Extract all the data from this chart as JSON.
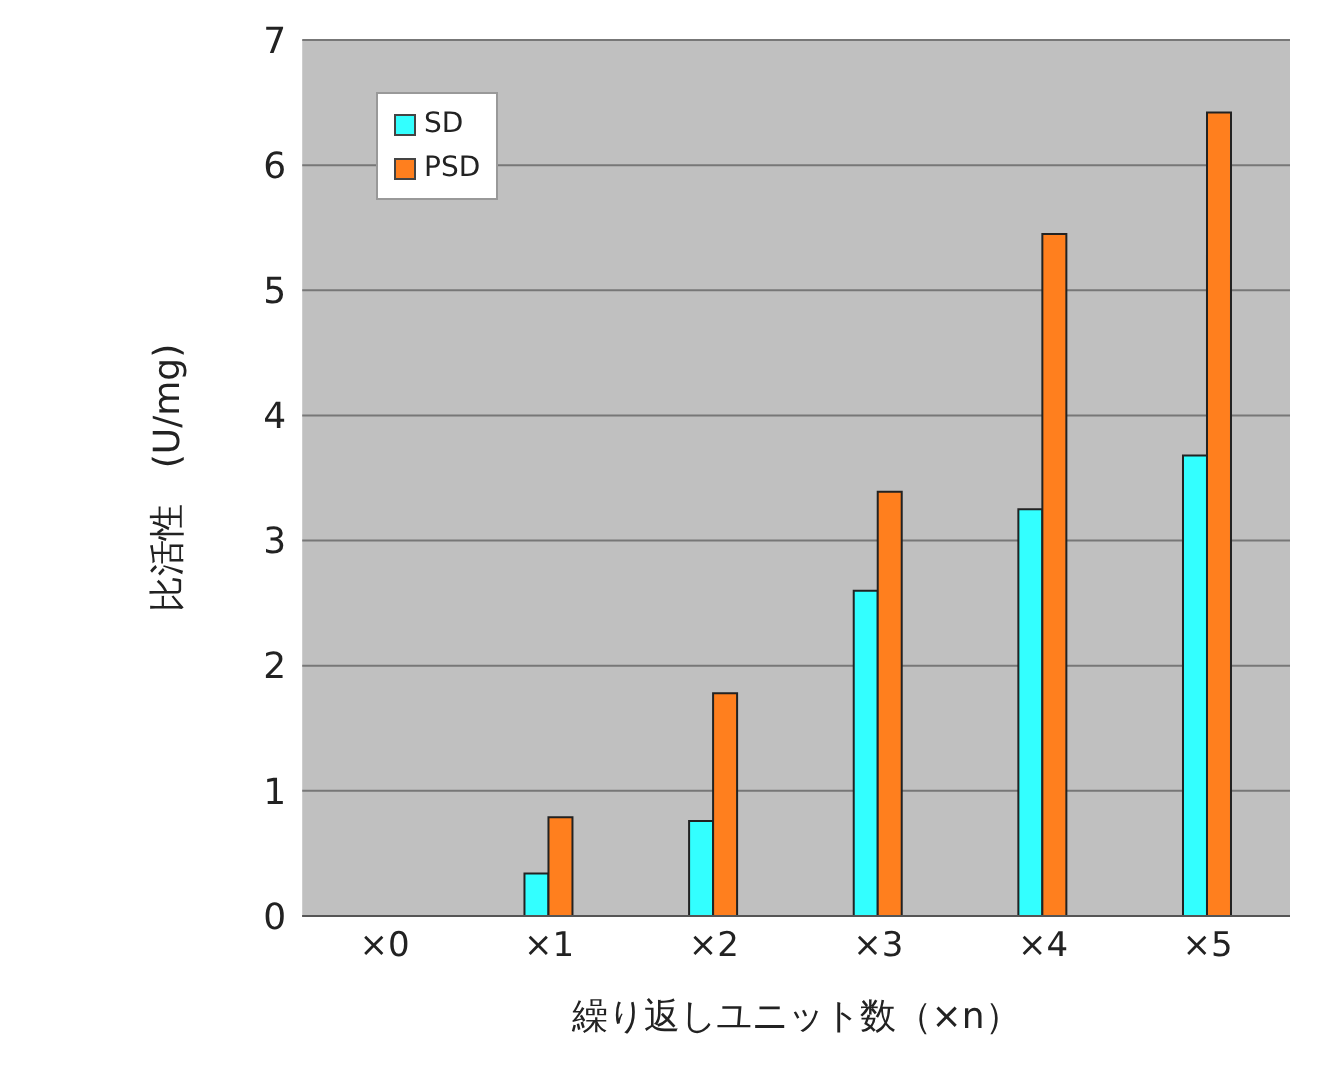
{
  "chart_data": {
    "type": "bar",
    "xlabel": "繰り返しユニット数（×n）",
    "ylabel": "比活性　(U/mg)",
    "categories": [
      "×0",
      "×1",
      "×2",
      "×3",
      "×4",
      "×5"
    ],
    "series": [
      {
        "name": "SD",
        "color": "#33ffff",
        "values": [
          0,
          0.34,
          0.76,
          2.6,
          3.25,
          3.68
        ]
      },
      {
        "name": "PSD",
        "color": "#ff7f1e",
        "values": [
          0,
          0.79,
          1.78,
          3.39,
          5.45,
          6.42
        ]
      }
    ],
    "ylim": [
      0,
      7
    ],
    "yticks": [
      0,
      1,
      2,
      3,
      4,
      5,
      6,
      7
    ],
    "grid": "y",
    "legend": "top left"
  }
}
